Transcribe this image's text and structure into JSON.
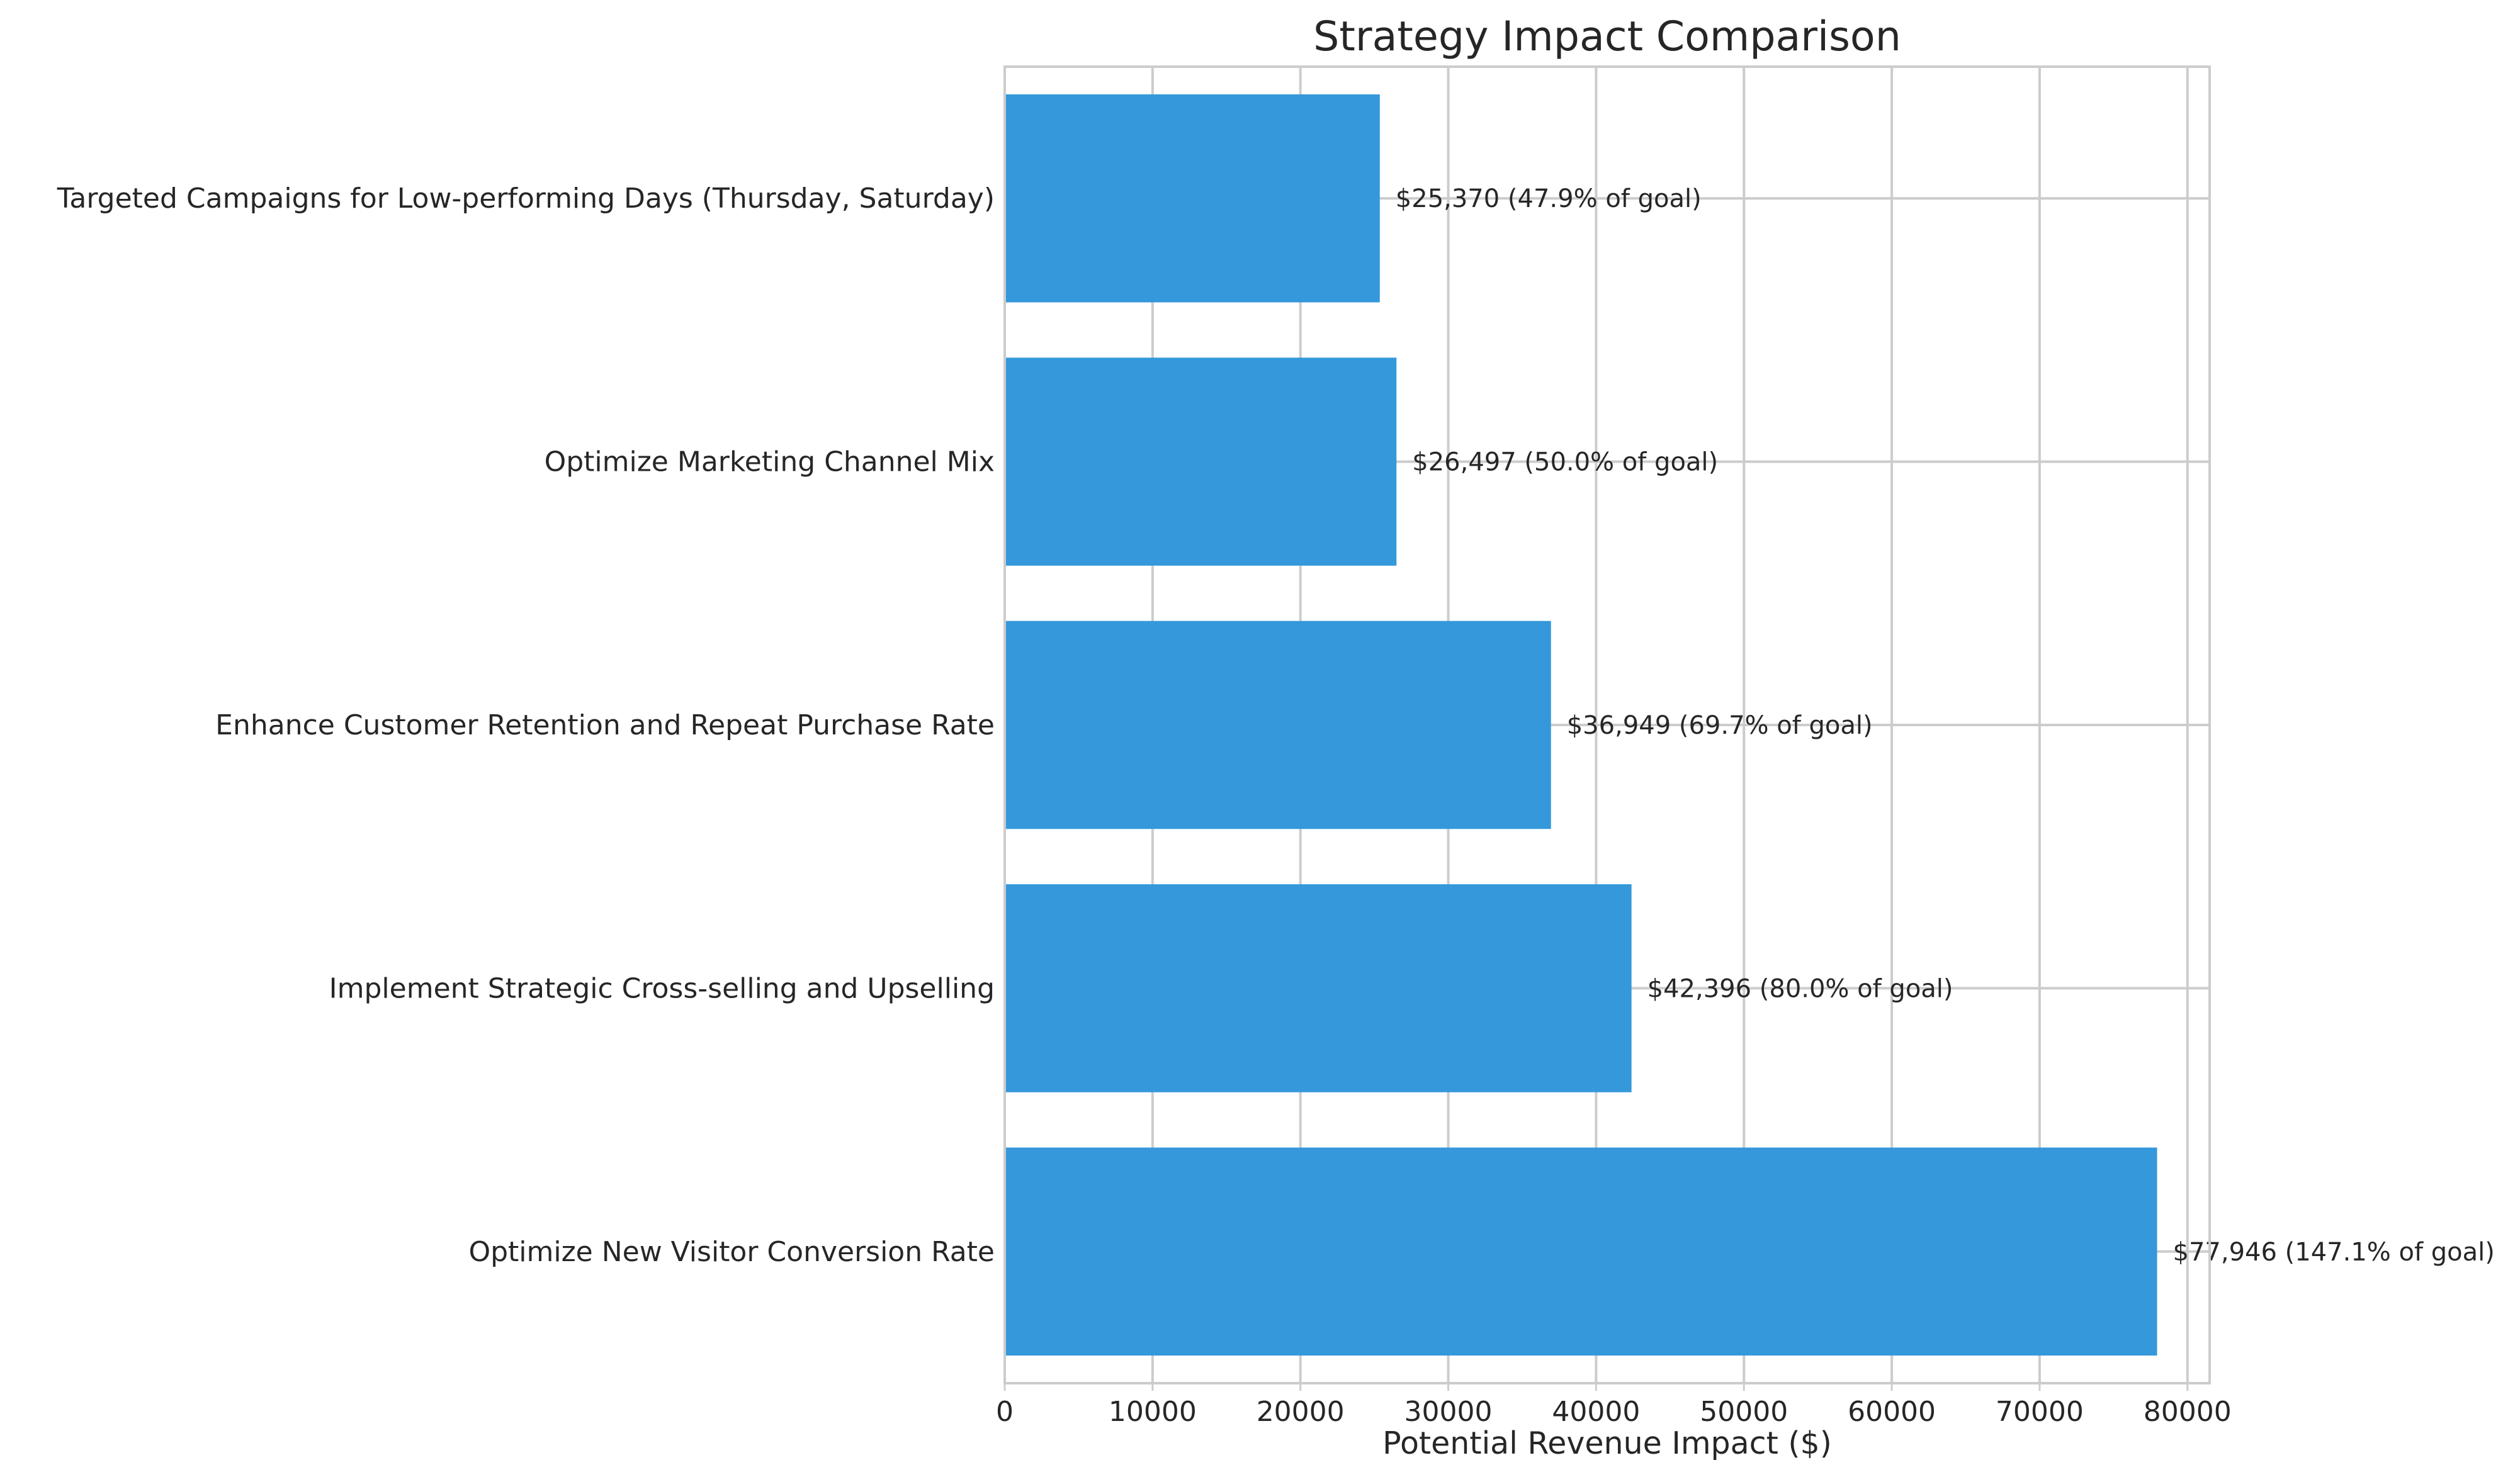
{
  "chart_data": {
    "type": "bar",
    "orientation": "horizontal",
    "title": "Strategy Impact Comparison",
    "xlabel": "Potential Revenue Impact ($)",
    "ylabel": "",
    "xlim": [
      0,
      81500
    ],
    "xticks": [
      0,
      10000,
      20000,
      30000,
      40000,
      50000,
      60000,
      70000,
      80000
    ],
    "xtick_labels": [
      "0",
      "10000",
      "20000",
      "30000",
      "40000",
      "50000",
      "60000",
      "70000",
      "80000"
    ],
    "grid": true,
    "categories": [
      "Optimize New Visitor Conversion Rate",
      "Implement Strategic Cross-selling and Upselling",
      "Enhance Customer Retention and Repeat Purchase Rate",
      "Optimize Marketing Channel Mix",
      "Targeted Campaigns for Low-performing Days (Thursday, Saturday)"
    ],
    "values": [
      77946,
      42396,
      36949,
      26497,
      25370
    ],
    "data_labels": [
      "$77,946 (147.1% of goal)",
      "$42,396 (80.0% of goal)",
      "$36,949 (69.7% of goal)",
      "$26,497 (50.0% of goal)",
      "$25,370 (47.9% of goal)"
    ],
    "bar_color": "#3498db",
    "grid_color": "#cccccc",
    "text_color": "#262626"
  }
}
